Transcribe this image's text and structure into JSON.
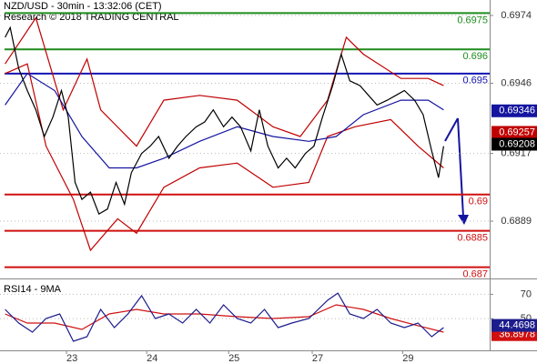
{
  "chart_data": [
    {
      "type": "line",
      "title": "NZD/USD - 30min - 13:32:06 (CET)",
      "subtitle": "Research © 2018 TRADING CENTRAL",
      "xlim": [
        0,
        287
      ],
      "ylim": [
        0.68657,
        0.69804
      ],
      "yticks": [
        0.6889,
        0.6917,
        0.6946,
        0.6974
      ],
      "grid": true,
      "levels": [
        {
          "value": 0.6975,
          "color": "#1e8c1e"
        },
        {
          "value": 0.696,
          "color": "#1e8c1e"
        },
        {
          "value": 0.695,
          "color": "#1414b4"
        },
        {
          "value": 0.69,
          "color": "#d01010"
        },
        {
          "value": 0.6885,
          "color": "#d01010"
        },
        {
          "value": 0.687,
          "color": "#d01010"
        }
      ],
      "series": [
        {
          "color": "#c00000",
          "x": [
            3,
            21,
            37,
            51,
            59,
            80,
            96,
            117,
            139,
            160,
            176,
            192,
            203,
            213,
            235,
            251,
            260
          ],
          "values": [
            0.6954,
            0.6973,
            0.6935,
            0.6956,
            0.6935,
            0.692,
            0.6939,
            0.6941,
            0.6939,
            0.6928,
            0.6924,
            0.6939,
            0.6965,
            0.6958,
            0.6948,
            0.6948,
            0.6945
          ]
        },
        {
          "color": "#c00000",
          "x": [
            3,
            16,
            27,
            43,
            53,
            69,
            80,
            96,
            117,
            139,
            160,
            181,
            192,
            208,
            229,
            245,
            260
          ],
          "values": [
            0.695,
            0.6954,
            0.692,
            0.6898,
            0.6877,
            0.689,
            0.6884,
            0.6903,
            0.6911,
            0.6913,
            0.6903,
            0.6905,
            0.6924,
            0.6928,
            0.6931,
            0.692,
            0.6911
          ],
          "last": 0.69257
        },
        {
          "color": "#1414a0",
          "x": [
            3,
            16,
            32,
            48,
            64,
            80,
            96,
            117,
            139,
            160,
            181,
            197,
            213,
            235,
            251,
            260
          ],
          "values": [
            0.6937,
            0.695,
            0.6943,
            0.6924,
            0.6911,
            0.6911,
            0.6915,
            0.6922,
            0.6928,
            0.6924,
            0.6922,
            0.6924,
            0.6933,
            0.6939,
            0.6939,
            0.6935
          ],
          "last": 0.69346
        },
        {
          "color": "#000000",
          "x": [
            3,
            6,
            11,
            16,
            21,
            26,
            31,
            36,
            40,
            44,
            48,
            53,
            58,
            63,
            68,
            73,
            77,
            83,
            88,
            93,
            99,
            104,
            109,
            115,
            120,
            125,
            131,
            136,
            141,
            147,
            152,
            157,
            163,
            168,
            173,
            179,
            184,
            189,
            195,
            200,
            205,
            211,
            216,
            221,
            227,
            232,
            237,
            243,
            248,
            253,
            257,
            260
          ],
          "values": [
            0.6965,
            0.6969,
            0.6952,
            0.6943,
            0.6935,
            0.6924,
            0.6932,
            0.6943,
            0.6932,
            0.6905,
            0.6898,
            0.6901,
            0.6892,
            0.6894,
            0.6905,
            0.6896,
            0.6909,
            0.6917,
            0.692,
            0.6924,
            0.6915,
            0.692,
            0.6924,
            0.6928,
            0.693,
            0.6935,
            0.6928,
            0.6932,
            0.6928,
            0.6918,
            0.6935,
            0.692,
            0.6911,
            0.6915,
            0.6911,
            0.6917,
            0.692,
            0.6932,
            0.6945,
            0.6958,
            0.6947,
            0.6945,
            0.6941,
            0.6937,
            0.6939,
            0.6941,
            0.6943,
            0.6939,
            0.6933,
            0.6918,
            0.6907,
            0.692
          ],
          "last": 0.69208
        }
      ]
    },
    {
      "type": "line",
      "title": "RSI14 - 9MA",
      "xlim": [
        0,
        287
      ],
      "ylim": [
        24,
        80
      ],
      "yticks": [
        50,
        70
      ],
      "grid": true,
      "xticks": [
        {
          "value": 39,
          "label": "23"
        },
        {
          "value": 86,
          "label": "24"
        },
        {
          "value": 134,
          "label": "25"
        },
        {
          "value": 183,
          "label": "27"
        },
        {
          "value": 236,
          "label": "29"
        }
      ],
      "series": [
        {
          "color": "#d01010",
          "x": [
            3,
            16,
            32,
            48,
            64,
            80,
            96,
            117,
            139,
            160,
            181,
            197,
            213,
            229,
            245,
            260
          ],
          "values": [
            53.9,
            46.4,
            46.4,
            41.2,
            53.9,
            57.6,
            53.9,
            53.9,
            51.6,
            50.1,
            51.6,
            61.3,
            57.6,
            50.1,
            44.2,
            38.9
          ],
          "last": 36.8978
        },
        {
          "color": "#1c1c8c",
          "x": [
            3,
            11,
            19,
            27,
            35,
            43,
            51,
            59,
            67,
            75,
            83,
            91,
            99,
            107,
            115,
            123,
            131,
            139,
            147,
            155,
            163,
            171,
            181,
            192,
            198,
            205,
            213,
            221,
            229,
            237,
            245,
            253,
            260
          ],
          "values": [
            57.6,
            46.4,
            38.9,
            50.1,
            53.9,
            31.5,
            35.2,
            57.6,
            42.7,
            53.9,
            68.8,
            50.1,
            53.9,
            46.4,
            57.6,
            46.4,
            61.3,
            50.1,
            46.4,
            57.6,
            42.7,
            46.4,
            50.1,
            65.1,
            71.0,
            53.9,
            50.1,
            57.6,
            46.4,
            42.7,
            46.4,
            35.2,
            42.7
          ],
          "last": 44.4698
        }
      ]
    }
  ]
}
